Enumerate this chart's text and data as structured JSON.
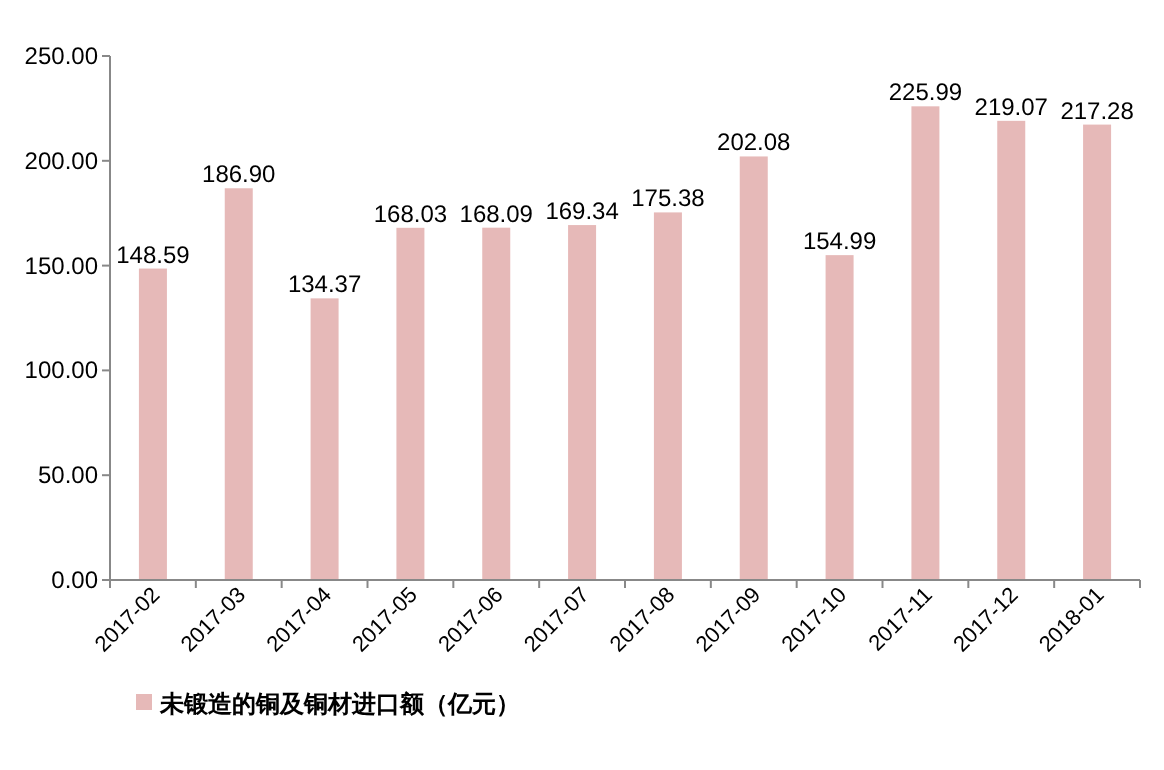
{
  "chart_data": {
    "type": "bar",
    "categories": [
      "2017-02",
      "2017-03",
      "2017-04",
      "2017-05",
      "2017-06",
      "2017-07",
      "2017-08",
      "2017-09",
      "2017-10",
      "2017-11",
      "2017-12",
      "2018-01"
    ],
    "series": [
      {
        "name": "未锻造的铜及铜材进口额（亿元）",
        "color": "#e6b9b8",
        "values": [
          148.59,
          186.9,
          134.37,
          168.03,
          168.09,
          169.34,
          175.38,
          202.08,
          154.99,
          225.99,
          219.07,
          217.28
        ],
        "value_labels": [
          "148.59",
          "186.90",
          "134.37",
          "168.03",
          "168.09",
          "169.34",
          "175.38",
          "202.08",
          "154.99",
          "225.99",
          "219.07",
          "217.28"
        ]
      }
    ],
    "ylim": [
      0,
      250
    ],
    "yticks": [
      {
        "value": 0,
        "label": "0.00"
      },
      {
        "value": 50,
        "label": "50.00"
      },
      {
        "value": 100,
        "label": "100.00"
      },
      {
        "value": 150,
        "label": "150.00"
      },
      {
        "value": 200,
        "label": "200.00"
      },
      {
        "value": 250,
        "label": "250.00"
      }
    ],
    "grid": false,
    "legend": "bottom left"
  }
}
